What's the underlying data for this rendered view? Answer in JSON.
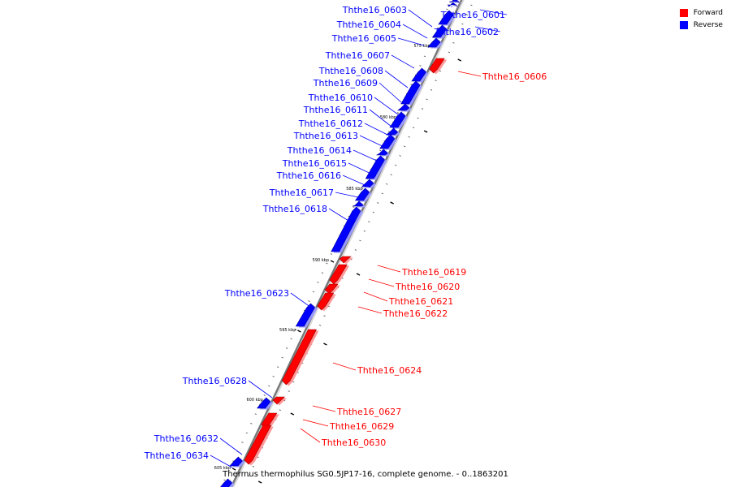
{
  "legend": {
    "forward": {
      "label": "Forward",
      "color": "#ff0000"
    },
    "reverse": {
      "label": "Reverse",
      "color": "#0000ff"
    }
  },
  "caption": "Thermus thermophilus SG0.5JP17-16, complete genome. - 0..1863201",
  "ticks": [
    "575 kbp",
    "580 kbp",
    "585 kbp",
    "590 kbp",
    "595 kbp",
    "600 kbp",
    "605 kbp"
  ],
  "genes": [
    {
      "name": "Ththe16_0601",
      "strand": "reverse"
    },
    {
      "name": "Ththe16_0602",
      "strand": "reverse"
    },
    {
      "name": "Ththe16_0603",
      "strand": "reverse"
    },
    {
      "name": "Ththe16_0604",
      "strand": "reverse"
    },
    {
      "name": "Ththe16_0605",
      "strand": "reverse"
    },
    {
      "name": "Ththe16_0606",
      "strand": "forward"
    },
    {
      "name": "Ththe16_0607",
      "strand": "reverse"
    },
    {
      "name": "Ththe16_0608",
      "strand": "reverse"
    },
    {
      "name": "Ththe16_0609",
      "strand": "reverse"
    },
    {
      "name": "Ththe16_0610",
      "strand": "reverse"
    },
    {
      "name": "Ththe16_0611",
      "strand": "reverse"
    },
    {
      "name": "Ththe16_0612",
      "strand": "reverse"
    },
    {
      "name": "Ththe16_0613",
      "strand": "reverse"
    },
    {
      "name": "Ththe16_0614",
      "strand": "reverse"
    },
    {
      "name": "Ththe16_0615",
      "strand": "reverse"
    },
    {
      "name": "Ththe16_0616",
      "strand": "reverse"
    },
    {
      "name": "Ththe16_0617",
      "strand": "reverse"
    },
    {
      "name": "Ththe16_0618",
      "strand": "reverse"
    },
    {
      "name": "Ththe16_0619",
      "strand": "forward"
    },
    {
      "name": "Ththe16_0620",
      "strand": "forward"
    },
    {
      "name": "Ththe16_0621",
      "strand": "forward"
    },
    {
      "name": "Ththe16_0622",
      "strand": "forward"
    },
    {
      "name": "Ththe16_0623",
      "strand": "reverse"
    },
    {
      "name": "Ththe16_0624",
      "strand": "forward"
    },
    {
      "name": "Ththe16_0627",
      "strand": "forward"
    },
    {
      "name": "Ththe16_0628",
      "strand": "reverse"
    },
    {
      "name": "Ththe16_0629",
      "strand": "forward"
    },
    {
      "name": "Ththe16_0630",
      "strand": "forward"
    },
    {
      "name": "Ththe16_0632",
      "strand": "reverse"
    },
    {
      "name": "Ththe16_0634",
      "strand": "reverse"
    }
  ]
}
